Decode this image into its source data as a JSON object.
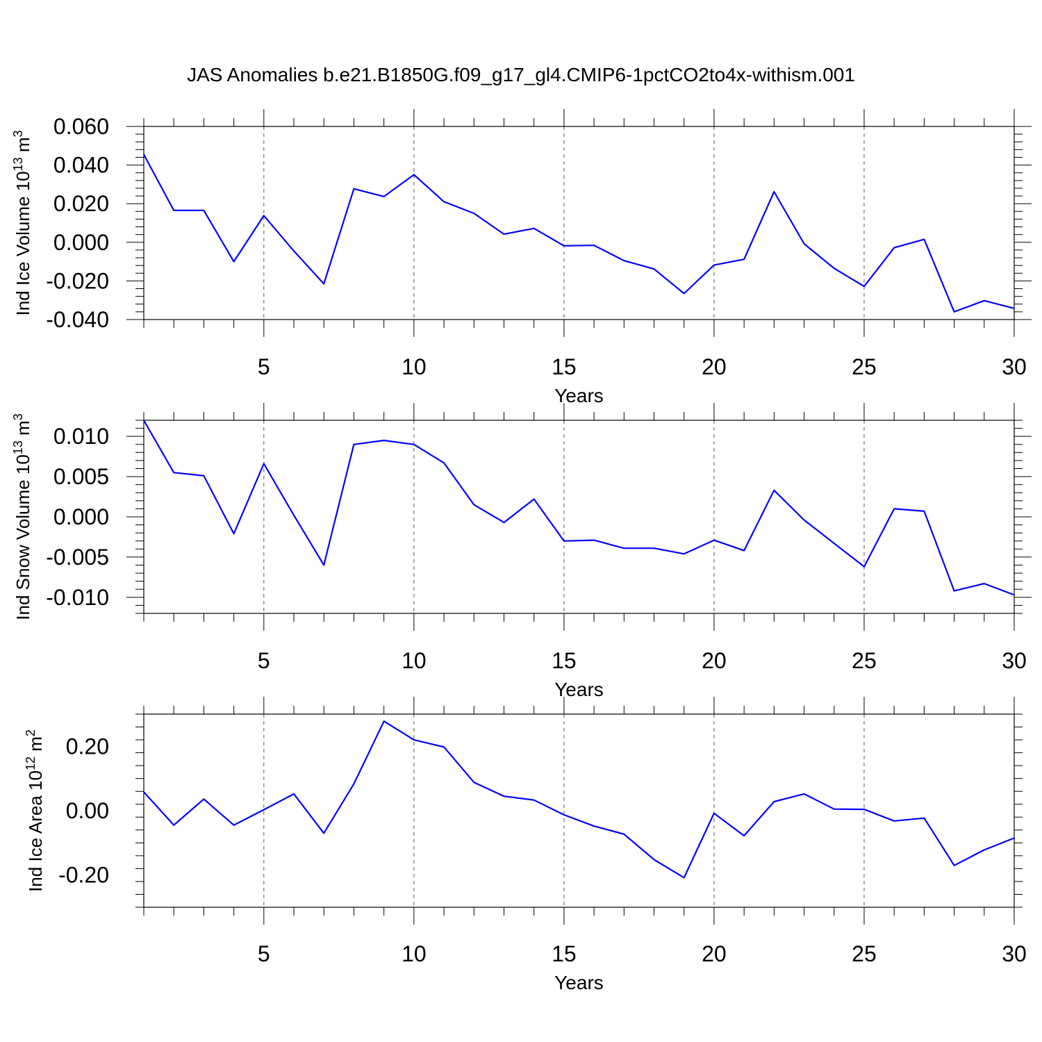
{
  "title": "JAS Anomalies b.e21.B1850G.f09_g17_gl4.CMIP6-1pctCO2to4x-withism.001",
  "colors": {
    "line": "#0000ff",
    "axis": "#000000",
    "grid": "#555555",
    "background": "#ffffff"
  },
  "chart_data": [
    {
      "type": "line",
      "ylabel": "Ind Ice Volume",
      "yunit_base": "10",
      "yunit_exp": "13",
      "yunit_suffix": "m",
      "yunit_suffix_exp": "3",
      "xlabel": "Years",
      "xlim": [
        1,
        30
      ],
      "ylim": [
        -0.04,
        0.06
      ],
      "xticks": [
        5,
        10,
        15,
        20,
        25,
        30
      ],
      "yticks": [
        -0.04,
        -0.02,
        0.0,
        0.02,
        0.04,
        0.06
      ],
      "ytick_labels": [
        "-0.040",
        "-0.020",
        "0.000",
        "0.020",
        "0.040",
        "0.060"
      ],
      "grid": "vertical dashed at major x ticks",
      "x": [
        1,
        2,
        3,
        4,
        5,
        6,
        7,
        8,
        9,
        10,
        11,
        12,
        13,
        14,
        15,
        16,
        17,
        18,
        19,
        20,
        21,
        22,
        23,
        24,
        25,
        26,
        27,
        28,
        29,
        30
      ],
      "values": [
        0.0455,
        0.0165,
        0.0165,
        -0.01,
        0.0138,
        -0.0045,
        -0.0215,
        0.0277,
        0.0237,
        0.035,
        0.021,
        0.015,
        0.0042,
        0.0072,
        -0.0018,
        -0.0016,
        -0.0095,
        -0.0138,
        -0.0265,
        -0.0118,
        -0.0088,
        0.0262,
        -0.0008,
        -0.0135,
        -0.0228,
        -0.0028,
        0.0015,
        -0.036,
        -0.0302,
        -0.0342
      ]
    },
    {
      "type": "line",
      "ylabel": "Ind Snow Volume",
      "yunit_base": "10",
      "yunit_exp": "13",
      "yunit_suffix": "m",
      "yunit_suffix_exp": "3",
      "xlabel": "Years",
      "xlim": [
        1,
        30
      ],
      "ylim": [
        -0.012,
        0.012
      ],
      "xticks": [
        5,
        10,
        15,
        20,
        25,
        30
      ],
      "yticks": [
        -0.01,
        -0.005,
        0.0,
        0.005,
        0.01
      ],
      "ytick_labels": [
        "-0.010",
        "-0.005",
        "0.000",
        "0.005",
        "0.010"
      ],
      "grid": "vertical dashed at major x ticks",
      "x": [
        1,
        2,
        3,
        4,
        5,
        6,
        7,
        8,
        9,
        10,
        11,
        12,
        13,
        14,
        15,
        16,
        17,
        18,
        19,
        20,
        21,
        22,
        23,
        24,
        25,
        26,
        27,
        28,
        29,
        30
      ],
      "values": [
        0.012,
        0.0055,
        0.0051,
        -0.0021,
        0.0066,
        0.0002,
        -0.006,
        0.009,
        0.0095,
        0.009,
        0.0067,
        0.0015,
        -0.0007,
        0.0022,
        -0.003,
        -0.0029,
        -0.0039,
        -0.0039,
        -0.0046,
        -0.0029,
        -0.0042,
        0.0033,
        -0.0004,
        -0.0033,
        -0.0062,
        0.001,
        0.0007,
        -0.0092,
        -0.0083,
        -0.0097
      ]
    },
    {
      "type": "line",
      "ylabel": "Ind Ice Area",
      "yunit_base": "10",
      "yunit_exp": "12",
      "yunit_suffix": "m",
      "yunit_suffix_exp": "2",
      "xlabel": "Years",
      "xlim": [
        1,
        30
      ],
      "ylim": [
        -0.3,
        0.3
      ],
      "xticks": [
        5,
        10,
        15,
        20,
        25,
        30
      ],
      "yticks": [
        -0.2,
        0.0,
        0.2
      ],
      "ytick_labels": [
        "-0.20",
        "0.00",
        "0.20"
      ],
      "grid": "vertical dashed at major x ticks",
      "x": [
        1,
        2,
        3,
        4,
        5,
        6,
        7,
        8,
        9,
        10,
        11,
        12,
        13,
        14,
        15,
        16,
        17,
        18,
        19,
        20,
        21,
        22,
        23,
        24,
        25,
        26,
        27,
        28,
        29,
        30
      ],
      "values": [
        0.058,
        -0.045,
        0.036,
        -0.045,
        0.003,
        0.052,
        -0.07,
        0.083,
        0.278,
        0.22,
        0.198,
        0.088,
        0.045,
        0.033,
        -0.013,
        -0.048,
        -0.073,
        -0.152,
        -0.208,
        -0.008,
        -0.078,
        0.028,
        0.052,
        0.005,
        0.004,
        -0.032,
        -0.023,
        -0.17,
        -0.122,
        -0.085
      ]
    }
  ]
}
